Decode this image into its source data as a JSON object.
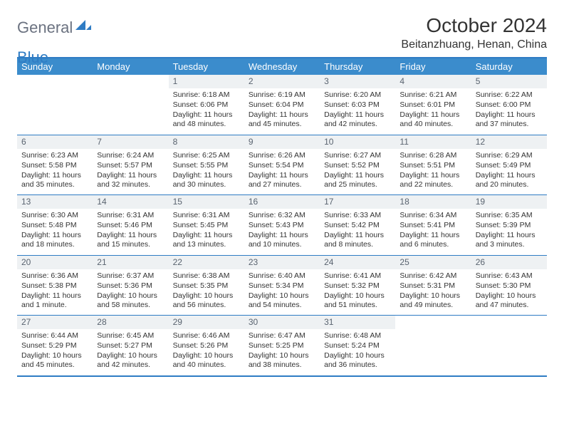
{
  "brand": {
    "part1": "General",
    "part2": "Blue"
  },
  "header": {
    "month_title": "October 2024",
    "location": "Beitanzhuang, Henan, China"
  },
  "colors": {
    "header_bg": "#3b8ccc",
    "border": "#2f7cc4",
    "daynum_bg": "#eef1f3",
    "text": "#333333",
    "logo_grey": "#6b7280",
    "logo_blue": "#2f7cc4"
  },
  "fonts": {
    "month_title_size": 28,
    "location_size": 16,
    "dayhead_size": 13,
    "daynum_size": 12,
    "cell_size": 10.5
  },
  "day_names": [
    "Sunday",
    "Monday",
    "Tuesday",
    "Wednesday",
    "Thursday",
    "Friday",
    "Saturday"
  ],
  "weeks": [
    [
      null,
      null,
      {
        "n": "1",
        "sunrise": "Sunrise: 6:18 AM",
        "sunset": "Sunset: 6:06 PM",
        "daylight": "Daylight: 11 hours and 48 minutes."
      },
      {
        "n": "2",
        "sunrise": "Sunrise: 6:19 AM",
        "sunset": "Sunset: 6:04 PM",
        "daylight": "Daylight: 11 hours and 45 minutes."
      },
      {
        "n": "3",
        "sunrise": "Sunrise: 6:20 AM",
        "sunset": "Sunset: 6:03 PM",
        "daylight": "Daylight: 11 hours and 42 minutes."
      },
      {
        "n": "4",
        "sunrise": "Sunrise: 6:21 AM",
        "sunset": "Sunset: 6:01 PM",
        "daylight": "Daylight: 11 hours and 40 minutes."
      },
      {
        "n": "5",
        "sunrise": "Sunrise: 6:22 AM",
        "sunset": "Sunset: 6:00 PM",
        "daylight": "Daylight: 11 hours and 37 minutes."
      }
    ],
    [
      {
        "n": "6",
        "sunrise": "Sunrise: 6:23 AM",
        "sunset": "Sunset: 5:58 PM",
        "daylight": "Daylight: 11 hours and 35 minutes."
      },
      {
        "n": "7",
        "sunrise": "Sunrise: 6:24 AM",
        "sunset": "Sunset: 5:57 PM",
        "daylight": "Daylight: 11 hours and 32 minutes."
      },
      {
        "n": "8",
        "sunrise": "Sunrise: 6:25 AM",
        "sunset": "Sunset: 5:55 PM",
        "daylight": "Daylight: 11 hours and 30 minutes."
      },
      {
        "n": "9",
        "sunrise": "Sunrise: 6:26 AM",
        "sunset": "Sunset: 5:54 PM",
        "daylight": "Daylight: 11 hours and 27 minutes."
      },
      {
        "n": "10",
        "sunrise": "Sunrise: 6:27 AM",
        "sunset": "Sunset: 5:52 PM",
        "daylight": "Daylight: 11 hours and 25 minutes."
      },
      {
        "n": "11",
        "sunrise": "Sunrise: 6:28 AM",
        "sunset": "Sunset: 5:51 PM",
        "daylight": "Daylight: 11 hours and 22 minutes."
      },
      {
        "n": "12",
        "sunrise": "Sunrise: 6:29 AM",
        "sunset": "Sunset: 5:49 PM",
        "daylight": "Daylight: 11 hours and 20 minutes."
      }
    ],
    [
      {
        "n": "13",
        "sunrise": "Sunrise: 6:30 AM",
        "sunset": "Sunset: 5:48 PM",
        "daylight": "Daylight: 11 hours and 18 minutes."
      },
      {
        "n": "14",
        "sunrise": "Sunrise: 6:31 AM",
        "sunset": "Sunset: 5:46 PM",
        "daylight": "Daylight: 11 hours and 15 minutes."
      },
      {
        "n": "15",
        "sunrise": "Sunrise: 6:31 AM",
        "sunset": "Sunset: 5:45 PM",
        "daylight": "Daylight: 11 hours and 13 minutes."
      },
      {
        "n": "16",
        "sunrise": "Sunrise: 6:32 AM",
        "sunset": "Sunset: 5:43 PM",
        "daylight": "Daylight: 11 hours and 10 minutes."
      },
      {
        "n": "17",
        "sunrise": "Sunrise: 6:33 AM",
        "sunset": "Sunset: 5:42 PM",
        "daylight": "Daylight: 11 hours and 8 minutes."
      },
      {
        "n": "18",
        "sunrise": "Sunrise: 6:34 AM",
        "sunset": "Sunset: 5:41 PM",
        "daylight": "Daylight: 11 hours and 6 minutes."
      },
      {
        "n": "19",
        "sunrise": "Sunrise: 6:35 AM",
        "sunset": "Sunset: 5:39 PM",
        "daylight": "Daylight: 11 hours and 3 minutes."
      }
    ],
    [
      {
        "n": "20",
        "sunrise": "Sunrise: 6:36 AM",
        "sunset": "Sunset: 5:38 PM",
        "daylight": "Daylight: 11 hours and 1 minute."
      },
      {
        "n": "21",
        "sunrise": "Sunrise: 6:37 AM",
        "sunset": "Sunset: 5:36 PM",
        "daylight": "Daylight: 10 hours and 58 minutes."
      },
      {
        "n": "22",
        "sunrise": "Sunrise: 6:38 AM",
        "sunset": "Sunset: 5:35 PM",
        "daylight": "Daylight: 10 hours and 56 minutes."
      },
      {
        "n": "23",
        "sunrise": "Sunrise: 6:40 AM",
        "sunset": "Sunset: 5:34 PM",
        "daylight": "Daylight: 10 hours and 54 minutes."
      },
      {
        "n": "24",
        "sunrise": "Sunrise: 6:41 AM",
        "sunset": "Sunset: 5:32 PM",
        "daylight": "Daylight: 10 hours and 51 minutes."
      },
      {
        "n": "25",
        "sunrise": "Sunrise: 6:42 AM",
        "sunset": "Sunset: 5:31 PM",
        "daylight": "Daylight: 10 hours and 49 minutes."
      },
      {
        "n": "26",
        "sunrise": "Sunrise: 6:43 AM",
        "sunset": "Sunset: 5:30 PM",
        "daylight": "Daylight: 10 hours and 47 minutes."
      }
    ],
    [
      {
        "n": "27",
        "sunrise": "Sunrise: 6:44 AM",
        "sunset": "Sunset: 5:29 PM",
        "daylight": "Daylight: 10 hours and 45 minutes."
      },
      {
        "n": "28",
        "sunrise": "Sunrise: 6:45 AM",
        "sunset": "Sunset: 5:27 PM",
        "daylight": "Daylight: 10 hours and 42 minutes."
      },
      {
        "n": "29",
        "sunrise": "Sunrise: 6:46 AM",
        "sunset": "Sunset: 5:26 PM",
        "daylight": "Daylight: 10 hours and 40 minutes."
      },
      {
        "n": "30",
        "sunrise": "Sunrise: 6:47 AM",
        "sunset": "Sunset: 5:25 PM",
        "daylight": "Daylight: 10 hours and 38 minutes."
      },
      {
        "n": "31",
        "sunrise": "Sunrise: 6:48 AM",
        "sunset": "Sunset: 5:24 PM",
        "daylight": "Daylight: 10 hours and 36 minutes."
      },
      null,
      null
    ]
  ]
}
